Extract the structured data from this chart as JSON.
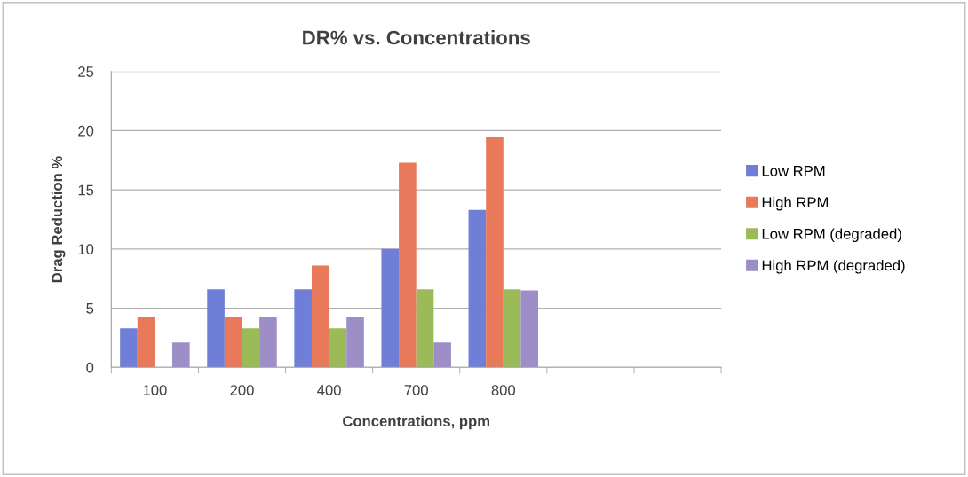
{
  "chart_data": {
    "type": "bar",
    "title": "DR% vs. Concentrations",
    "xlabel": "Concentrations, ppm",
    "ylabel": "Drag Reduction %",
    "categories": [
      "100",
      "200",
      "400",
      "700",
      "800",
      null,
      null
    ],
    "series": [
      {
        "name": "Low RPM",
        "color": "#6f7ed6",
        "values": [
          3.3,
          6.6,
          6.6,
          10,
          13.3,
          null,
          null
        ]
      },
      {
        "name": "High RPM",
        "color": "#e8795a",
        "values": [
          4.3,
          4.3,
          8.6,
          17.3,
          19.5,
          null,
          null
        ]
      },
      {
        "name": "Low RPM (degraded)",
        "color": "#9bbb59",
        "values": [
          0,
          3.3,
          3.3,
          6.6,
          6.6,
          null,
          null
        ]
      },
      {
        "name": "High RPM (degraded)",
        "color": "#9e8ec8",
        "values": [
          2.1,
          4.3,
          4.3,
          2.1,
          6.5,
          null,
          null
        ]
      }
    ],
    "ylim": [
      0,
      25
    ],
    "yticks": [
      0,
      5,
      10,
      15,
      20,
      25
    ],
    "grid": "y",
    "legend": "right"
  }
}
